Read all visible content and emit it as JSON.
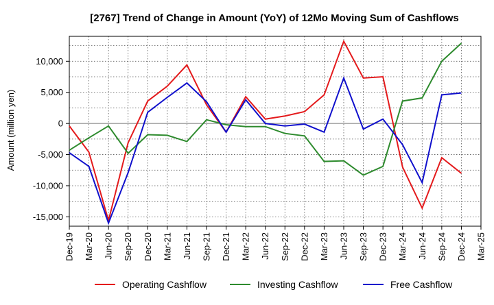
{
  "chart_data": {
    "type": "line",
    "title": "[2767]  Trend of Change in Amount (YoY) of 12Mo Moving Sum of Cashflows",
    "xlabel": "",
    "ylabel": "Amount (million yen)",
    "ylim": [
      -16500,
      14000
    ],
    "yticks": [
      -15000,
      -10000,
      -5000,
      0,
      5000,
      10000
    ],
    "ytick_labels": [
      "-15,000",
      "-10,000",
      "-5,000",
      "0",
      "5,000",
      "10,000"
    ],
    "categories": [
      "Dec-19",
      "Mar-20",
      "Jun-20",
      "Sep-20",
      "Dec-20",
      "Mar-21",
      "Jun-21",
      "Sep-21",
      "Dec-21",
      "Mar-22",
      "Jun-22",
      "Sep-22",
      "Dec-22",
      "Mar-23",
      "Jun-23",
      "Sep-23",
      "Dec-23",
      "Mar-24",
      "Jun-24",
      "Sep-24",
      "Dec-24",
      "Mar-25"
    ],
    "grid": true,
    "legend_position": "bottom",
    "series": [
      {
        "name": "Operating Cashflow",
        "color": "#e41a1c",
        "values": [
          -400,
          -4600,
          -15600,
          -3100,
          3600,
          6000,
          9400,
          3000,
          -1400,
          4300,
          700,
          1200,
          1900,
          4600,
          13200,
          7300,
          7500,
          -7000,
          -13600,
          -5500,
          -8000,
          null
        ]
      },
      {
        "name": "Investing Cashflow",
        "color": "#2e8b2e",
        "values": [
          -4300,
          -2300,
          -400,
          -4800,
          -1800,
          -1900,
          -2900,
          600,
          -200,
          -500,
          -500,
          -1600,
          -2000,
          -6100,
          -6000,
          -8300,
          -6900,
          3600,
          4100,
          10000,
          12900,
          null
        ]
      },
      {
        "name": "Free Cashflow",
        "color": "#1010cc",
        "values": [
          -4700,
          -6900,
          -16000,
          -7900,
          1800,
          4200,
          6500,
          3500,
          -1400,
          3800,
          0,
          -400,
          -100,
          -1400,
          7300,
          -900,
          700,
          -3400,
          -9500,
          4600,
          4900,
          null
        ]
      }
    ]
  }
}
